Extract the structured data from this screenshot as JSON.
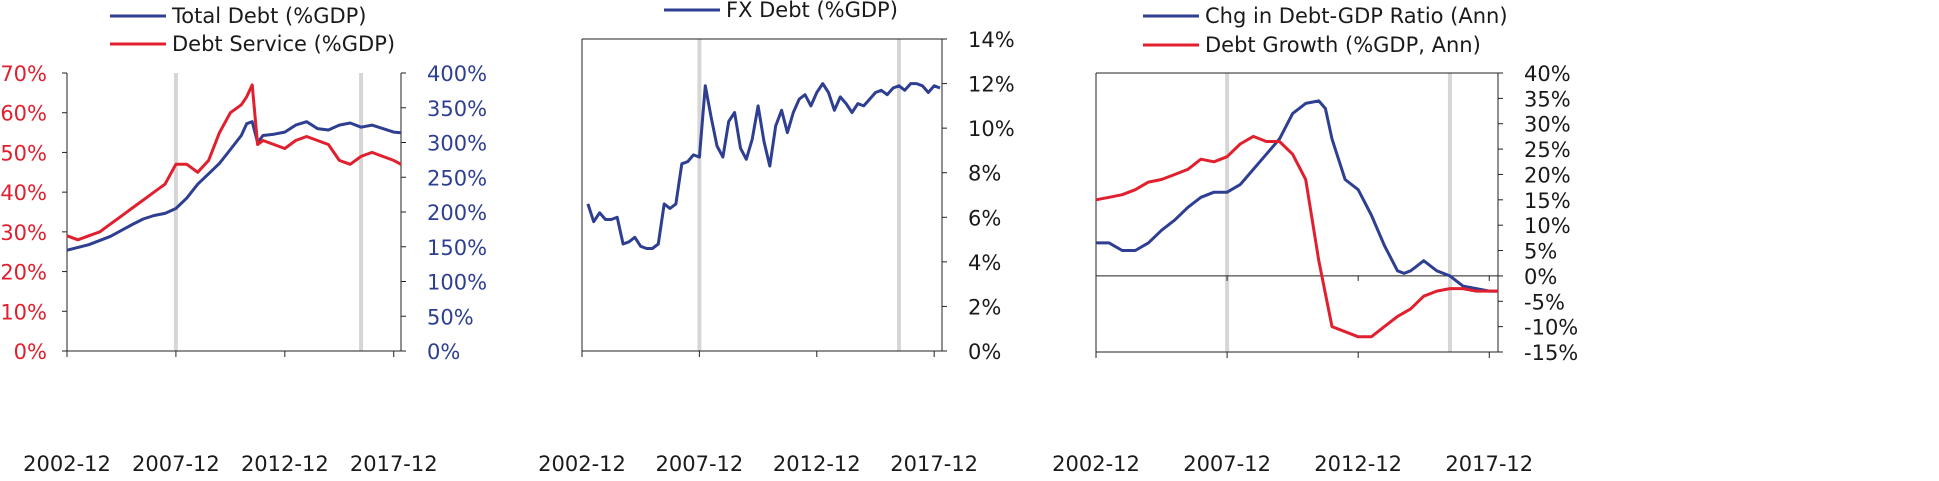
{
  "colors": {
    "blue": "#2e3f91",
    "red": "#e0202e",
    "recession": "#d6d6d6",
    "axis": "#222222",
    "text": "#1a1a1a"
  },
  "chart_data": [
    {
      "type": "line",
      "x_ticks": [
        "2002-12",
        "2007-12",
        "2012-12",
        "2017-12"
      ],
      "xlim": [
        "2002-12",
        "2018-04"
      ],
      "shaded_dates": [
        "2007-12",
        "2016-06"
      ],
      "left_axis": {
        "ticks": [
          "0%",
          "10%",
          "20%",
          "30%",
          "40%",
          "50%",
          "60%",
          "70%"
        ],
        "ylim": [
          0,
          70
        ],
        "color": "red"
      },
      "right_axis": {
        "ticks": [
          "0%",
          "50%",
          "100%",
          "150%",
          "200%",
          "250%",
          "300%",
          "350%",
          "400%"
        ],
        "ylim": [
          0,
          400
        ],
        "color": "blue"
      },
      "legend": [
        "Total Debt (%GDP)",
        "Debt Service (%GDP)"
      ],
      "series": [
        {
          "name": "Total Debt (%GDP)",
          "axis": "right",
          "color": "blue",
          "x": [
            "2002-12",
            "2003-12",
            "2004-12",
            "2005-12",
            "2006-06",
            "2006-12",
            "2007-06",
            "2007-12",
            "2008-06",
            "2008-12",
            "2009-06",
            "2009-12",
            "2010-06",
            "2010-12",
            "2011-03",
            "2011-06",
            "2011-09",
            "2011-12",
            "2012-06",
            "2012-12",
            "2013-06",
            "2013-12",
            "2014-06",
            "2014-12",
            "2015-06",
            "2015-12",
            "2016-06",
            "2016-12",
            "2017-06",
            "2017-12",
            "2018-04"
          ],
          "values": [
            145,
            153,
            165,
            182,
            190,
            195,
            198,
            205,
            220,
            240,
            255,
            270,
            290,
            310,
            327,
            330,
            300,
            310,
            312,
            315,
            325,
            330,
            320,
            318,
            325,
            328,
            322,
            325,
            320,
            315,
            314
          ]
        },
        {
          "name": "Debt Service (%GDP)",
          "axis": "left",
          "color": "red",
          "x": [
            "2002-12",
            "2003-06",
            "2003-12",
            "2004-06",
            "2004-12",
            "2005-06",
            "2005-12",
            "2006-06",
            "2006-12",
            "2007-06",
            "2007-12",
            "2008-06",
            "2008-12",
            "2009-06",
            "2009-12",
            "2010-06",
            "2010-12",
            "2011-03",
            "2011-06",
            "2011-09",
            "2011-12",
            "2012-06",
            "2012-12",
            "2013-06",
            "2013-12",
            "2014-06",
            "2014-12",
            "2015-06",
            "2015-12",
            "2016-06",
            "2016-12",
            "2017-06",
            "2017-12",
            "2018-04"
          ],
          "values": [
            29,
            28,
            29,
            30,
            32,
            34,
            36,
            38,
            40,
            42,
            47,
            47,
            45,
            48,
            55,
            60,
            62,
            64,
            67,
            52,
            53,
            52,
            51,
            53,
            54,
            53,
            52,
            48,
            47,
            49,
            50,
            49,
            48,
            47
          ]
        }
      ]
    },
    {
      "type": "line",
      "x_ticks": [
        "2002-12",
        "2007-12",
        "2012-12",
        "2017-12"
      ],
      "xlim": [
        "2002-12",
        "2018-04"
      ],
      "shaded_dates": [
        "2007-12",
        "2016-06"
      ],
      "right_axis": {
        "ticks": [
          "0%",
          "2%",
          "4%",
          "6%",
          "8%",
          "10%",
          "12%",
          "14%"
        ],
        "ylim": [
          0,
          14
        ]
      },
      "legend": [
        "FX Debt (%GDP)"
      ],
      "series": [
        {
          "name": "FX Debt (%GDP)",
          "color": "blue",
          "x": [
            "2003-03",
            "2003-06",
            "2003-09",
            "2003-12",
            "2004-03",
            "2004-06",
            "2004-09",
            "2004-12",
            "2005-03",
            "2005-06",
            "2005-09",
            "2005-12",
            "2006-03",
            "2006-06",
            "2006-09",
            "2006-12",
            "2007-03",
            "2007-06",
            "2007-09",
            "2007-12",
            "2008-03",
            "2008-06",
            "2008-09",
            "2008-12",
            "2009-03",
            "2009-06",
            "2009-09",
            "2009-12",
            "2010-03",
            "2010-06",
            "2010-09",
            "2010-12",
            "2011-03",
            "2011-06",
            "2011-09",
            "2011-12",
            "2012-03",
            "2012-06",
            "2012-09",
            "2012-12",
            "2013-03",
            "2013-06",
            "2013-09",
            "2013-12",
            "2014-03",
            "2014-06",
            "2014-09",
            "2014-12",
            "2015-03",
            "2015-06",
            "2015-09",
            "2015-12",
            "2016-03",
            "2016-06",
            "2016-09",
            "2016-12",
            "2017-03",
            "2017-06",
            "2017-09",
            "2017-12",
            "2018-03"
          ],
          "values": [
            6.6,
            5.8,
            6.2,
            5.9,
            5.9,
            6.0,
            4.8,
            4.9,
            5.1,
            4.7,
            4.6,
            4.6,
            4.8,
            6.6,
            6.4,
            6.6,
            8.4,
            8.5,
            8.8,
            8.7,
            11.9,
            10.5,
            9.2,
            8.7,
            10.3,
            10.7,
            9.1,
            8.6,
            9.5,
            11.0,
            9.4,
            8.3,
            10.1,
            10.8,
            9.8,
            10.7,
            11.3,
            11.5,
            11.0,
            11.6,
            12.0,
            11.6,
            10.8,
            11.4,
            11.1,
            10.7,
            11.1,
            11.0,
            11.3,
            11.6,
            11.7,
            11.5,
            11.8,
            11.9,
            11.7,
            12.0,
            12.0,
            11.9,
            11.6,
            11.9,
            11.8
          ]
        }
      ]
    },
    {
      "type": "line",
      "x_ticks": [
        "2002-12",
        "2007-12",
        "2012-12",
        "2017-12"
      ],
      "xlim": [
        "2002-12",
        "2018-04"
      ],
      "shaded_dates": [
        "2007-12",
        "2016-06"
      ],
      "right_axis": {
        "ticks": [
          "-15%",
          "-10%",
          "-5%",
          "0%",
          "5%",
          "10%",
          "15%",
          "20%",
          "25%",
          "30%",
          "35%",
          "40%"
        ],
        "ylim": [
          -15,
          40
        ]
      },
      "legend": [
        "Chg in Debt-GDP Ratio (Ann)",
        "Debt Growth (%GDP, Ann)"
      ],
      "series": [
        {
          "name": "Chg in Debt-GDP Ratio (Ann)",
          "color": "blue",
          "x": [
            "2002-12",
            "2003-06",
            "2003-12",
            "2004-06",
            "2004-12",
            "2005-06",
            "2005-12",
            "2006-06",
            "2006-12",
            "2007-06",
            "2007-12",
            "2008-06",
            "2008-12",
            "2009-06",
            "2009-12",
            "2010-06",
            "2010-12",
            "2011-06",
            "2011-09",
            "2011-12",
            "2012-06",
            "2012-12",
            "2013-06",
            "2013-12",
            "2014-06",
            "2014-09",
            "2014-12",
            "2015-03",
            "2015-06",
            "2015-09",
            "2015-12",
            "2016-06",
            "2016-12",
            "2017-06",
            "2017-12",
            "2018-04"
          ],
          "values": [
            6.5,
            6.5,
            5,
            5,
            6.5,
            9,
            11,
            13.5,
            15.5,
            16.5,
            16.5,
            18,
            21,
            24,
            27,
            32,
            34,
            34.5,
            33,
            27,
            19,
            17,
            12,
            6,
            1,
            0.5,
            1,
            2,
            3,
            2,
            1,
            0,
            -2,
            -2.5,
            -3,
            -3
          ]
        },
        {
          "name": "Debt Growth (%GDP, Ann)",
          "color": "red",
          "x": [
            "2002-12",
            "2003-06",
            "2003-12",
            "2004-06",
            "2004-12",
            "2005-06",
            "2005-12",
            "2006-06",
            "2006-12",
            "2007-06",
            "2007-12",
            "2008-06",
            "2008-12",
            "2009-06",
            "2009-12",
            "2010-06",
            "2010-12",
            "2011-06",
            "2011-12",
            "2012-06",
            "2012-09",
            "2012-12",
            "2013-06",
            "2013-12",
            "2014-06",
            "2014-12",
            "2015-06",
            "2015-12",
            "2016-06",
            "2016-12",
            "2017-06",
            "2017-12",
            "2018-04"
          ],
          "values": [
            15,
            15.5,
            16,
            17,
            18.5,
            19,
            20,
            21,
            23,
            22.5,
            23.5,
            26,
            27.5,
            26.5,
            26.5,
            24,
            19,
            3,
            -10,
            -11,
            -11.5,
            -12,
            -12,
            -10,
            -8,
            -6.5,
            -4,
            -3,
            -2.5,
            -2.5,
            -3,
            -3,
            -3
          ]
        }
      ]
    }
  ]
}
